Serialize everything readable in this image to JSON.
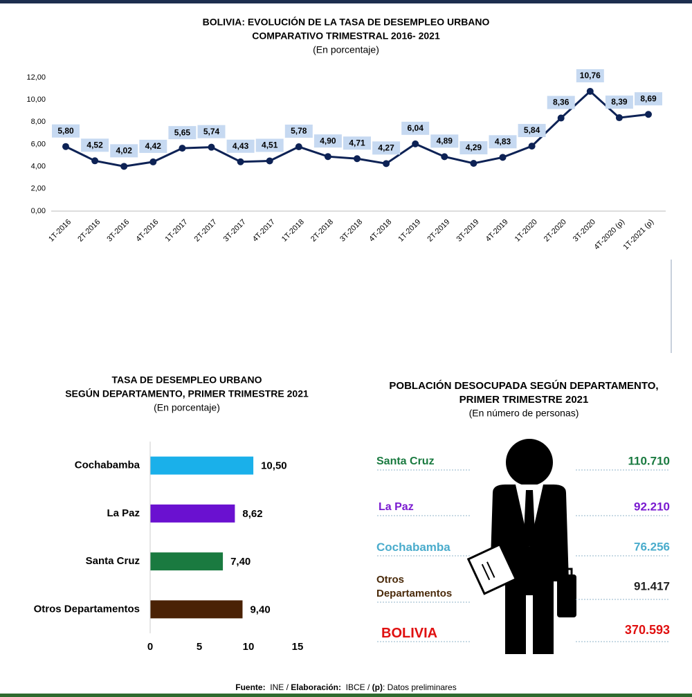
{
  "chart_data": [
    {
      "type": "line",
      "title": [
        "BOLIVIA: EVOLUCIÓN DE LA TASA DE DESEMPLEO URBANO",
        "COMPARATIVO TRIMESTRAL 2016- 2021"
      ],
      "subtitle": "(En porcentaje)",
      "categories": [
        "1T-2016",
        "2T-2016",
        "3T-2016",
        "4T-2016",
        "1T-2017",
        "2T-2017",
        "3T-2017",
        "4T-2017",
        "1T-2018",
        "2T-2018",
        "3T-2018",
        "4T-2018",
        "1T-2019",
        "2T-2019",
        "3T-2019",
        "4T-2019",
        "1T-2020",
        "2T-2020",
        "3T-2020",
        "4T-2020 (p)",
        "1T-2021 (p)"
      ],
      "values": [
        5.8,
        4.52,
        4.02,
        4.42,
        5.65,
        5.74,
        4.43,
        4.51,
        5.78,
        4.9,
        4.71,
        4.27,
        6.04,
        4.89,
        4.29,
        4.83,
        5.84,
        8.36,
        10.76,
        8.39,
        8.69
      ],
      "value_labels": [
        "5,80",
        "4,52",
        "4,02",
        "4,42",
        "5,65",
        "5,74",
        "4,43",
        "4,51",
        "5,78",
        "4,90",
        "4,71",
        "4,27",
        "6,04",
        "4,89",
        "4,29",
        "4,83",
        "5,84",
        "8,36",
        "10,76",
        "8,39",
        "8,69"
      ],
      "color": "#0d2255",
      "ylim": [
        0,
        12
      ],
      "yticks": [
        {
          "value": 0,
          "label": "0,00"
        },
        {
          "value": 2,
          "label": "2,00"
        },
        {
          "value": 4,
          "label": "4,00"
        },
        {
          "value": 6,
          "label": "6,00"
        },
        {
          "value": 8,
          "label": "8,00"
        },
        {
          "value": 10,
          "label": "10,00"
        },
        {
          "value": 12,
          "label": "12,00"
        }
      ]
    },
    {
      "type": "hbar",
      "title": [
        "TASA DE DESEMPLEO URBANO",
        "SEGÚN DEPARTAMENTO, PRIMER TRIMESTRE 2021"
      ],
      "subtitle": "(En porcentaje)",
      "categories": [
        "Cochabamba",
        "La Paz",
        "Santa Cruz",
        "Otros Departamentos"
      ],
      "values": [
        10.5,
        8.62,
        7.4,
        9.4
      ],
      "value_labels": [
        "10,50",
        "8,62",
        "7,40",
        "9,40"
      ],
      "colors": [
        "#1ab0ea",
        "#6a11d0",
        "#1a7a40",
        "#4a2205"
      ],
      "xlim": [
        0,
        15
      ],
      "xticks": [
        0,
        5,
        10,
        15
      ]
    },
    {
      "type": "pictogram",
      "title": [
        "POBLACIÓN DESOCUPADA SEGÚN DEPARTAMENTO,",
        "PRIMER TRIMESTRE 2021"
      ],
      "subtitle": "(En número de personas)",
      "categories": [
        "Santa Cruz",
        "La Paz",
        "Cochabamba",
        "Otros Departamentos",
        "BOLIVIA"
      ],
      "values": [
        110710,
        92210,
        76256,
        91417,
        370593
      ],
      "value_labels": [
        "110.710",
        "92.210",
        "76.256",
        "91.417",
        "370.593"
      ],
      "colors": [
        "#1a7a40",
        "#7a1ad0",
        "#4aaccc",
        "#4a2a0a",
        "#e01010"
      ]
    }
  ],
  "footer": [
    {
      "text": "Fuente:",
      "bold": true
    },
    {
      "text": "  INE / ",
      "bold": false
    },
    {
      "text": "Elaboración:",
      "bold": true
    },
    {
      "text": "  IBCE / ",
      "bold": false
    },
    {
      "text": "(p)",
      "bold": true
    },
    {
      "text": ": Datos preliminares",
      "bold": false
    }
  ]
}
